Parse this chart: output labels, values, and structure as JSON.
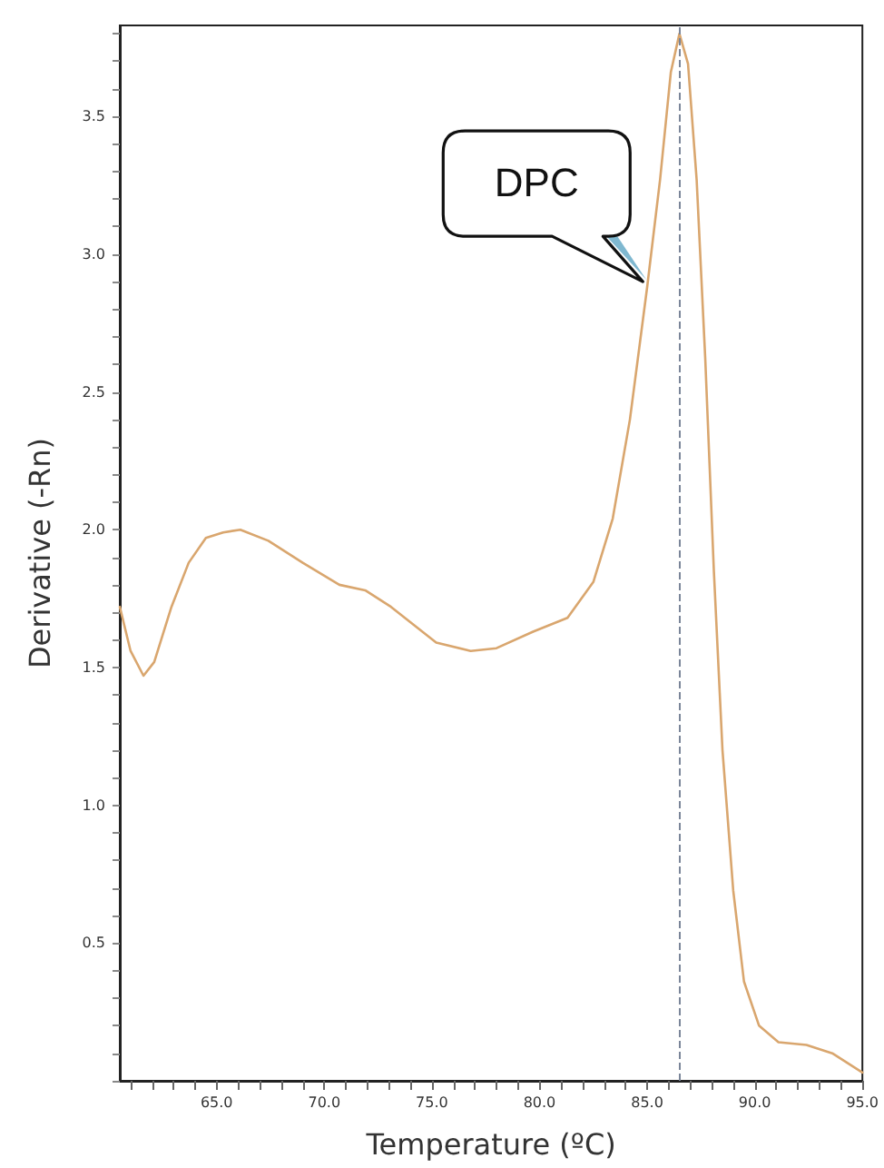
{
  "chart_data": {
    "type": "line",
    "xlabel": "Temperature (ºC)",
    "ylabel": "Derivative (-Rn)",
    "x": [
      60.5,
      61.0,
      61.6,
      62.1,
      62.9,
      63.7,
      64.5,
      65.3,
      66.1,
      67.4,
      69.0,
      70.7,
      71.9,
      73.1,
      75.2,
      76.8,
      78.0,
      79.7,
      81.3,
      82.5,
      83.4,
      84.2,
      85.0,
      85.6,
      86.1,
      86.5,
      86.9,
      87.3,
      87.7,
      88.1,
      88.5,
      89.0,
      89.5,
      90.2,
      91.1,
      92.4,
      93.6,
      95.0
    ],
    "series": [
      {
        "color": "#d9a66e",
        "values": [
          1.72,
          1.56,
          1.47,
          1.52,
          1.72,
          1.88,
          1.97,
          1.99,
          2.0,
          1.96,
          1.88,
          1.8,
          1.78,
          1.72,
          1.59,
          1.56,
          1.57,
          1.63,
          1.68,
          1.81,
          2.04,
          2.4,
          2.88,
          3.27,
          3.66,
          3.8,
          3.69,
          3.27,
          2.62,
          1.85,
          1.2,
          0.69,
          0.36,
          0.2,
          0.14,
          0.13,
          0.1,
          0.03
        ]
      }
    ],
    "xlim": [
      60.5,
      95
    ],
    "xticks": [
      {
        "value": 65,
        "label": "65.0"
      },
      {
        "value": 70,
        "label": "70.0"
      },
      {
        "value": 75,
        "label": "75.0"
      },
      {
        "value": 80,
        "label": "80.0"
      },
      {
        "value": 85,
        "label": "85.0"
      },
      {
        "value": 90,
        "label": "90.0"
      },
      {
        "value": 95,
        "label": "95.0"
      }
    ],
    "ylim": [
      0,
      3.83
    ],
    "yticks": [
      0.5,
      {
        "value": 1,
        "label": "1.0"
      },
      1.5,
      {
        "value": 2,
        "label": "2.0"
      },
      2.5,
      {
        "value": 3,
        "label": "3.0"
      },
      3.5
    ],
    "ref_lines": [
      {
        "axis": "x",
        "value": 86.5,
        "color": "#7a8599",
        "line_style": "dashed"
      }
    ],
    "annotations": [
      {
        "text": "DPC",
        "x": 84.8,
        "y": 2.9
      }
    ],
    "grid": false,
    "marker": "none",
    "line_style": "solid"
  }
}
